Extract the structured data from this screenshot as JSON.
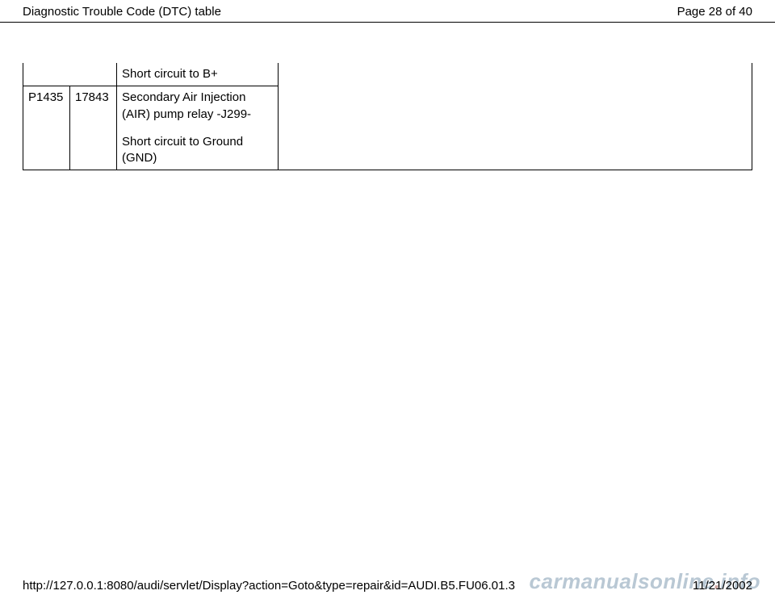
{
  "header": {
    "title": "Diagnostic Trouble Code (DTC) table",
    "page_label": "Page 28 of 40"
  },
  "table": {
    "row_top": {
      "col1": "",
      "col2": "",
      "desc": "Short circuit to B+"
    },
    "row_main": {
      "col1": "P1435",
      "col2": "17843",
      "desc_line1": "Secondary Air Injection (AIR) pump relay -J299-",
      "desc_line2": "Short circuit to Ground (GND)"
    }
  },
  "footer": {
    "url": "http://127.0.0.1:8080/audi/servlet/Display?action=Goto&type=repair&id=AUDI.B5.FU06.01.3",
    "date": "11/21/2002"
  },
  "watermark": {
    "left": "carmanualsonline",
    "dot": ".",
    "right": "info"
  },
  "colors": {
    "border": "#000000",
    "background": "#ffffff",
    "text": "#000000",
    "watermark_main": "#b9c8d4",
    "watermark_dot": "#cfa7a2"
  }
}
